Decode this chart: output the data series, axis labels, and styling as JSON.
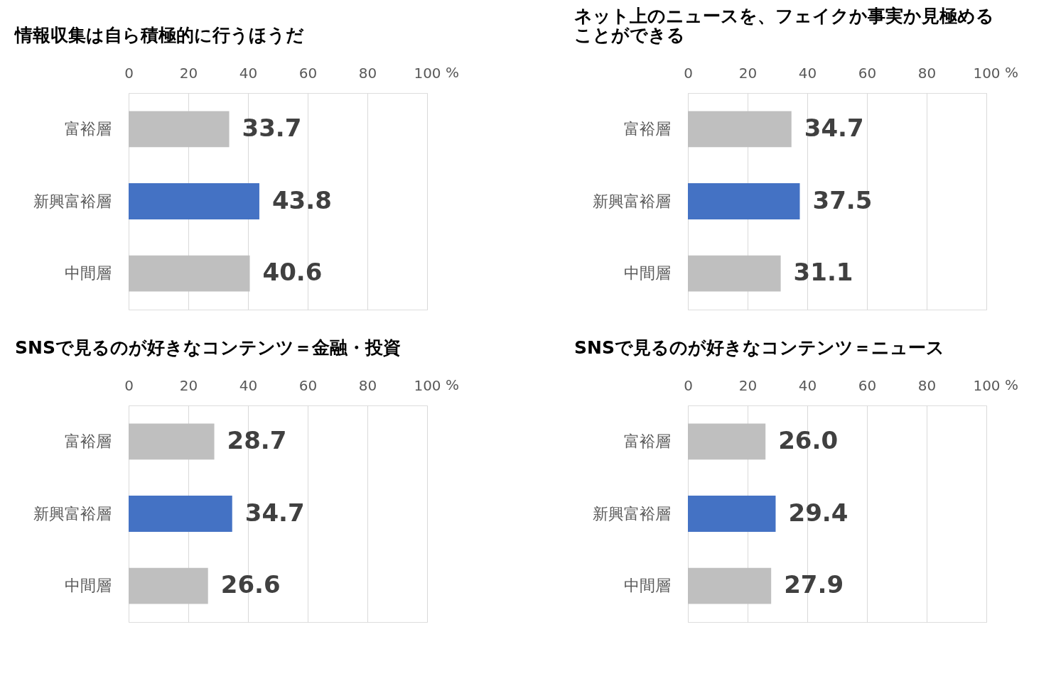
{
  "chart_data": [
    {
      "type": "bar",
      "orientation": "horizontal",
      "title": "情報収集は自ら積極的に行うほうだ",
      "categories": [
        "富裕層",
        "新興富裕層",
        "中間層"
      ],
      "values": [
        33.7,
        43.8,
        40.6
      ],
      "colors": [
        "#bfbfbf",
        "#4472c4",
        "#bfbfbf"
      ],
      "xlim": [
        0,
        100
      ],
      "xticks": [
        0,
        20,
        40,
        60,
        80,
        100
      ],
      "xlabel": "%",
      "grid": "x",
      "data_labels": true
    },
    {
      "type": "bar",
      "orientation": "horizontal",
      "title": "ネット上のニュースを、フェイクか事実か見極めることができる",
      "categories": [
        "富裕層",
        "新興富裕層",
        "中間層"
      ],
      "values": [
        34.7,
        37.5,
        31.1
      ],
      "colors": [
        "#bfbfbf",
        "#4472c4",
        "#bfbfbf"
      ],
      "xlim": [
        0,
        100
      ],
      "xticks": [
        0,
        20,
        40,
        60,
        80,
        100
      ],
      "xlabel": "%",
      "grid": "x",
      "data_labels": true
    },
    {
      "type": "bar",
      "orientation": "horizontal",
      "title": "SNSで見るのが好きなコンテンツ＝金融・投資",
      "categories": [
        "富裕層",
        "新興富裕層",
        "中間層"
      ],
      "values": [
        28.7,
        34.7,
        26.6
      ],
      "colors": [
        "#bfbfbf",
        "#4472c4",
        "#bfbfbf"
      ],
      "xlim": [
        0,
        100
      ],
      "xticks": [
        0,
        20,
        40,
        60,
        80,
        100
      ],
      "xlabel": "%",
      "grid": "x",
      "data_labels": true
    },
    {
      "type": "bar",
      "orientation": "horizontal",
      "title": "SNSで見るのが好きなコンテンツ＝ニュース",
      "categories": [
        "富裕層",
        "新興富裕層",
        "中間層"
      ],
      "values": [
        26.0,
        29.4,
        27.9
      ],
      "value_labels": [
        "26.0",
        "29.4",
        "27.9"
      ],
      "colors": [
        "#bfbfbf",
        "#4472c4",
        "#bfbfbf"
      ],
      "xlim": [
        0,
        100
      ],
      "xticks": [
        0,
        20,
        40,
        60,
        80,
        100
      ],
      "xlabel": "%",
      "grid": "x",
      "data_labels": true
    }
  ]
}
